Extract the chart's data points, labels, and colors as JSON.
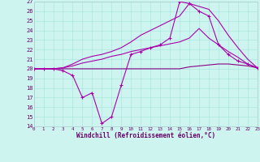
{
  "xlabel": "Windchill (Refroidissement éolien,°C)",
  "xlim": [
    0,
    23
  ],
  "ylim": [
    14,
    27
  ],
  "xtick_vals": [
    0,
    1,
    2,
    3,
    4,
    5,
    6,
    7,
    8,
    9,
    10,
    11,
    12,
    13,
    14,
    15,
    16,
    17,
    18,
    19,
    20,
    21,
    22,
    23
  ],
  "ytick_vals": [
    14,
    15,
    16,
    17,
    18,
    19,
    20,
    21,
    22,
    23,
    24,
    25,
    26,
    27
  ],
  "background_color": "#cef4f0",
  "grid_color": "#aae8e0",
  "line_color": "#aa00aa",
  "line_flat_color": "#880088",
  "flat_x": [
    0,
    1,
    2,
    3,
    4,
    5,
    6,
    7,
    8,
    9,
    10,
    11,
    12,
    13,
    14,
    15,
    16,
    17,
    18,
    19,
    20,
    21,
    22,
    23
  ],
  "flat_y": [
    20.0,
    20.0,
    20.0,
    20.0,
    20.0,
    20.0,
    20.0,
    20.0,
    20.0,
    20.0,
    20.0,
    20.0,
    20.0,
    20.0,
    20.0,
    20.0,
    20.2,
    20.3,
    20.4,
    20.5,
    20.5,
    20.4,
    20.3,
    20.1
  ],
  "line2_x": [
    0,
    1,
    2,
    3,
    4,
    5,
    6,
    7,
    8,
    9,
    10,
    11,
    12,
    13,
    14,
    15,
    16,
    17,
    18,
    19,
    20,
    21,
    22,
    23
  ],
  "line2_y": [
    20.0,
    20.0,
    20.0,
    20.1,
    20.3,
    20.6,
    20.8,
    21.0,
    21.3,
    21.5,
    21.8,
    22.0,
    22.2,
    22.4,
    22.6,
    22.8,
    23.2,
    24.2,
    23.2,
    22.5,
    21.8,
    21.2,
    20.5,
    20.1
  ],
  "line3_x": [
    0,
    1,
    2,
    3,
    4,
    5,
    6,
    7,
    8,
    9,
    10,
    11,
    12,
    13,
    14,
    15,
    16,
    17,
    18,
    19,
    20,
    21,
    22,
    23
  ],
  "line3_y": [
    20.0,
    20.0,
    20.0,
    20.1,
    20.5,
    21.0,
    21.3,
    21.5,
    21.8,
    22.2,
    22.8,
    23.5,
    24.0,
    24.5,
    25.0,
    25.5,
    26.8,
    26.5,
    26.2,
    25.0,
    23.5,
    22.2,
    21.0,
    20.1
  ],
  "wc_x": [
    0,
    1,
    2,
    3,
    4,
    5,
    6,
    7,
    8,
    9,
    10,
    11,
    12,
    13,
    14,
    15,
    16,
    17,
    18,
    19,
    20,
    21,
    22,
    23
  ],
  "wc_y": [
    20.0,
    20.0,
    20.0,
    19.8,
    19.3,
    17.0,
    17.5,
    14.3,
    15.0,
    18.3,
    21.5,
    21.8,
    22.2,
    22.5,
    23.2,
    27.0,
    26.8,
    26.0,
    25.5,
    22.5,
    21.5,
    20.8,
    20.5,
    20.1
  ]
}
